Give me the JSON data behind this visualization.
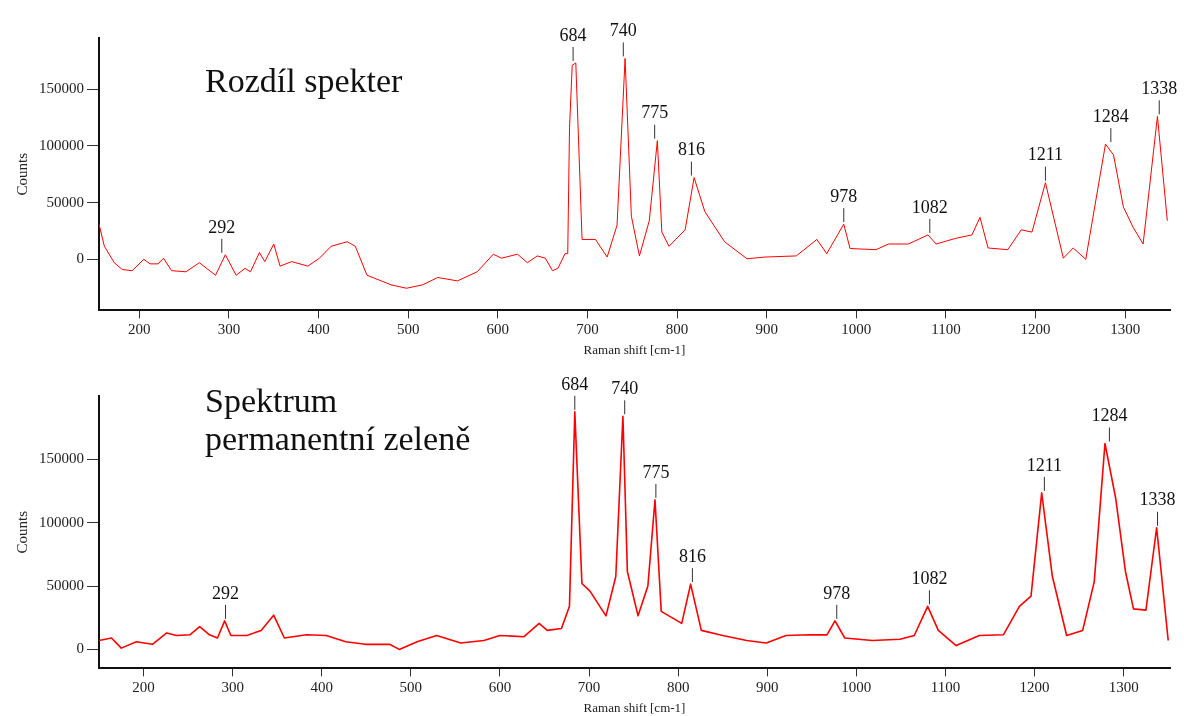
{
  "chart_data": [
    {
      "type": "line",
      "title": "Rozdíl spekter",
      "xlabel": "Raman shift [cm-1]",
      "ylabel": "Counts",
      "xlim": [
        155,
        1350
      ],
      "ylim": [
        -45000,
        195000
      ],
      "xticks": [
        200,
        300,
        400,
        500,
        600,
        700,
        800,
        900,
        1000,
        1100,
        1200,
        1300
      ],
      "yticks": [
        0,
        50000,
        100000,
        150000
      ],
      "grid": false,
      "legend": false,
      "marker": "none",
      "line_style": "solid",
      "x": [
        155,
        161,
        172,
        181,
        192,
        205,
        212,
        221,
        227,
        236,
        252,
        267,
        285,
        296,
        308,
        318,
        324,
        334,
        340,
        350,
        357,
        370,
        388,
        401,
        414,
        432,
        441,
        454,
        481,
        498,
        516,
        533,
        555,
        577,
        595,
        604,
        622,
        633,
        644,
        653,
        661,
        667,
        675,
        678,
        680,
        683,
        687,
        694,
        709,
        722,
        733,
        742,
        749,
        758,
        769,
        778,
        783,
        791,
        809,
        819,
        831,
        853,
        878,
        898,
        933,
        956,
        967,
        986,
        993,
        1022,
        1036,
        1058,
        1080,
        1089,
        1111,
        1129,
        1138,
        1147,
        1169,
        1184,
        1196,
        1211,
        1231,
        1242,
        1256,
        1278,
        1287,
        1298,
        1309,
        1320,
        1336,
        1347
      ],
      "series": [
        {
          "color": "#ff0000",
          "values": [
            31000,
            11500,
            -3000,
            -9000,
            -10000,
            0,
            -4000,
            -4000,
            1000,
            -10000,
            -11000,
            -3000,
            -14000,
            4000,
            -14000,
            -8000,
            -11000,
            6000,
            -2000,
            13500,
            -6000,
            -2000,
            -6000,
            1000,
            11500,
            15500,
            11500,
            -14000,
            -22500,
            -25500,
            -22500,
            -16000,
            -19000,
            -11000,
            4500,
            1000,
            4500,
            -3000,
            3000,
            1000,
            -10000,
            -8000,
            5000,
            5000,
            116000,
            171000,
            173000,
            17500,
            17500,
            2000,
            30000,
            177000,
            38000,
            3000,
            34000,
            104500,
            24000,
            11500,
            26000,
            72000,
            42000,
            15500,
            500,
            2000,
            3000,
            17500,
            5000,
            31000,
            9500,
            8500,
            13500,
            13500,
            21500,
            13500,
            18500,
            21500,
            37000,
            10000,
            8500,
            26000,
            24000,
            67500,
            1000,
            10000,
            0,
            101500,
            92000,
            46000,
            28000,
            13500,
            126000,
            34000
          ]
        }
      ],
      "annotations": [
        {
          "text": "292",
          "x": 292,
          "y": 4000
        },
        {
          "text": "684",
          "x": 684,
          "y": 173000
        },
        {
          "text": "740",
          "x": 740,
          "y": 177000
        },
        {
          "text": "775",
          "x": 775,
          "y": 104500
        },
        {
          "text": "816",
          "x": 816,
          "y": 72000
        },
        {
          "text": "978",
          "x": 986,
          "y": 31000
        },
        {
          "text": "1082",
          "x": 1082,
          "y": 21500
        },
        {
          "text": "1211",
          "x": 1211,
          "y": 67500
        },
        {
          "text": "1284",
          "x": 1284,
          "y": 101500
        },
        {
          "text": "1338",
          "x": 1338,
          "y": 126000
        }
      ]
    },
    {
      "type": "line",
      "title": "Spektrum permanentní zeleně",
      "xlabel": "Raman shift [cm-1]",
      "ylabel": "Counts",
      "xlim": [
        150,
        1352
      ],
      "ylim": [
        -15000,
        200000
      ],
      "xticks": [
        200,
        300,
        400,
        500,
        600,
        700,
        800,
        900,
        1000,
        1100,
        1200,
        1300
      ],
      "yticks": [
        0,
        50000,
        100000,
        150000
      ],
      "grid": false,
      "legend": false,
      "marker": "none",
      "line_style": "solid",
      "x": [
        150,
        164,
        175,
        192,
        210,
        226,
        237,
        252,
        263,
        274,
        283,
        291,
        298,
        316,
        332,
        346,
        358,
        383,
        405,
        427,
        449,
        476,
        487,
        507,
        529,
        556,
        582,
        600,
        627,
        644,
        653,
        669,
        678,
        684,
        692,
        701,
        719,
        730,
        738,
        743,
        755,
        766,
        774,
        781,
        804,
        814,
        826,
        850,
        877,
        899,
        921,
        948,
        967,
        976,
        987,
        1018,
        1049,
        1065,
        1080,
        1092,
        1112,
        1138,
        1165,
        1183,
        1196,
        1208,
        1220,
        1236,
        1254,
        1267,
        1279,
        1291,
        1302,
        1311,
        1325,
        1337,
        1350
      ],
      "series": [
        {
          "color": "#ff0000",
          "values": [
            7000,
            9000,
            1000,
            6000,
            4000,
            13000,
            11000,
            11500,
            18000,
            11500,
            9000,
            22500,
            11000,
            11000,
            15000,
            27000,
            9000,
            11500,
            11000,
            6000,
            4000,
            4000,
            0,
            6000,
            11000,
            5000,
            7000,
            11000,
            10000,
            20500,
            15000,
            16500,
            34000,
            187500,
            52000,
            46000,
            26500,
            57500,
            184000,
            61500,
            26500,
            50000,
            118000,
            30000,
            20500,
            51500,
            15000,
            11000,
            7000,
            5000,
            11000,
            11500,
            11500,
            22500,
            9000,
            7000,
            8000,
            11000,
            34000,
            15000,
            3000,
            11000,
            11500,
            34000,
            42000,
            123500,
            57500,
            11000,
            15000,
            53500,
            162500,
            119500,
            61500,
            32000,
            31000,
            96000,
            7000
          ]
        }
      ],
      "annotations": [
        {
          "text": "292",
          "x": 292,
          "y": 22500
        },
        {
          "text": "684",
          "x": 684,
          "y": 187500
        },
        {
          "text": "740",
          "x": 740,
          "y": 184000
        },
        {
          "text": "775",
          "x": 775,
          "y": 118000
        },
        {
          "text": "816",
          "x": 816,
          "y": 51500
        },
        {
          "text": "978",
          "x": 978,
          "y": 22500
        },
        {
          "text": "1082",
          "x": 1082,
          "y": 34000
        },
        {
          "text": "1211",
          "x": 1211,
          "y": 123500
        },
        {
          "text": "1284",
          "x": 1284,
          "y": 162500
        },
        {
          "text": "1338",
          "x": 1338,
          "y": 96000
        }
      ]
    }
  ]
}
